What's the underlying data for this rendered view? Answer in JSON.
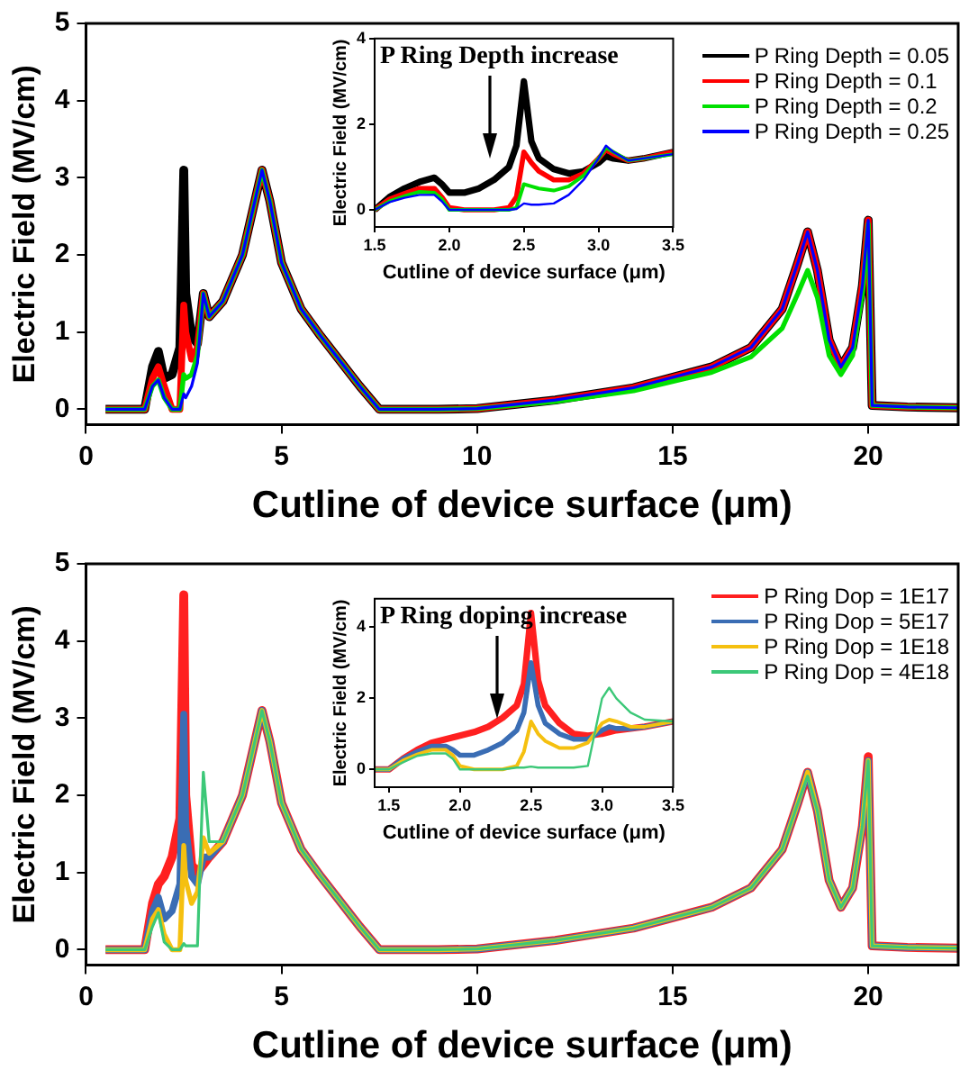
{
  "chart_data": [
    {
      "type": "line",
      "xlabel": "Cutline of device surface (μm)",
      "ylabel": "Electric Field (MV/cm)",
      "xlim": [
        0,
        22.3
      ],
      "xticks": [
        0,
        5,
        10,
        15,
        20
      ],
      "ylim": [
        -0.2,
        5
      ],
      "yticks": [
        0,
        1,
        2,
        3,
        4,
        5
      ],
      "grid": false,
      "legend": "top right",
      "marker": "none",
      "line_style": "solid",
      "x": [
        0.5,
        1.5,
        1.7,
        1.85,
        2.0,
        2.2,
        2.4,
        2.5,
        2.55,
        2.7,
        2.85,
        3.0,
        3.15,
        3.5,
        4.0,
        4.5,
        4.7,
        5.0,
        5.5,
        6.0,
        7.0,
        7.5,
        9.0,
        10,
        12,
        14,
        16,
        17,
        17.8,
        18.2,
        18.45,
        18.7,
        19.0,
        19.3,
        19.6,
        19.85,
        20.0,
        20.1,
        21,
        22.3
      ],
      "series": [
        {
          "name": "P Ring Depth = 0.05",
          "color": "#000000",
          "values": [
            0,
            0,
            0.55,
            0.75,
            0.4,
            0.45,
            0.8,
            3.1,
            1.5,
            0.95,
            0.85,
            1.5,
            1.2,
            1.4,
            2.0,
            3.1,
            2.7,
            1.9,
            1.3,
            0.95,
            0.3,
            0,
            0,
            0.01,
            0.12,
            0.28,
            0.55,
            0.8,
            1.3,
            1.9,
            2.3,
            1.8,
            0.9,
            0.55,
            0.8,
            1.6,
            2.45,
            0.05,
            0.03,
            0.02
          ]
        },
        {
          "name": "P Ring Depth = 0.1",
          "color": "#ff0000",
          "values": [
            0,
            0,
            0.4,
            0.55,
            0.3,
            0,
            0,
            1.35,
            1.0,
            0.65,
            0.8,
            1.5,
            1.2,
            1.4,
            2.0,
            3.1,
            2.7,
            1.9,
            1.3,
            0.95,
            0.3,
            0,
            0,
            0.01,
            0.12,
            0.28,
            0.55,
            0.8,
            1.3,
            1.9,
            2.3,
            1.8,
            0.9,
            0.55,
            0.8,
            1.6,
            2.45,
            0.05,
            0.03,
            0.02
          ]
        },
        {
          "name": "P Ring Depth = 0.2",
          "color": "#00e000",
          "values": [
            0,
            0,
            0.3,
            0.38,
            0.15,
            0,
            0,
            0.45,
            0.4,
            0.45,
            0.7,
            1.5,
            1.2,
            1.4,
            2.0,
            3.1,
            2.7,
            1.9,
            1.3,
            0.95,
            0.3,
            0,
            0,
            0.01,
            0.1,
            0.24,
            0.48,
            0.68,
            1.05,
            1.5,
            1.8,
            1.45,
            0.7,
            0.45,
            0.7,
            1.5,
            2.4,
            0.05,
            0.03,
            0.02
          ]
        },
        {
          "name": "P Ring Depth = 0.25",
          "color": "#0000ff",
          "values": [
            0,
            0,
            0.3,
            0.38,
            0.15,
            0,
            0,
            0.2,
            0.15,
            0.3,
            0.6,
            1.5,
            1.2,
            1.4,
            2.0,
            3.1,
            2.7,
            1.9,
            1.3,
            0.95,
            0.3,
            0,
            0,
            0.01,
            0.12,
            0.28,
            0.55,
            0.8,
            1.3,
            1.9,
            2.3,
            1.8,
            0.9,
            0.55,
            0.8,
            1.6,
            2.45,
            0.05,
            0.03,
            0.02
          ]
        }
      ]
    },
    {
      "type": "line",
      "xlabel": "Cutline of device surface (μm)",
      "ylabel": "Electric Field (MV/cm)",
      "annotations": [
        "P Ring Depth increase"
      ],
      "xlim": [
        1.5,
        3.5
      ],
      "xticks": [
        {
          "value": 1.5,
          "label": "1.5"
        },
        {
          "value": 2,
          "label": "2.0"
        },
        {
          "value": 2.5,
          "label": "2.5"
        },
        {
          "value": 3,
          "label": "3.0"
        },
        {
          "value": 3.5,
          "label": "3.5"
        }
      ],
      "ylim": [
        -0.4,
        4
      ],
      "yticks": [
        0,
        2,
        4
      ],
      "grid": false,
      "marker": "none",
      "line_style": "solid",
      "x": [
        1.5,
        1.6,
        1.7,
        1.8,
        1.9,
        1.95,
        2.0,
        2.1,
        2.2,
        2.3,
        2.4,
        2.45,
        2.5,
        2.55,
        2.6,
        2.7,
        2.8,
        2.9,
        3.0,
        3.05,
        3.1,
        3.2,
        3.3,
        3.5
      ],
      "series": [
        {
          "color": "#000000",
          "values": [
            0,
            0.3,
            0.5,
            0.65,
            0.75,
            0.6,
            0.4,
            0.4,
            0.5,
            0.7,
            1.0,
            1.5,
            3.0,
            1.6,
            1.2,
            0.95,
            0.85,
            0.9,
            1.1,
            1.25,
            1.2,
            1.15,
            1.2,
            1.35
          ]
        },
        {
          "color": "#ff0000",
          "values": [
            0,
            0.25,
            0.38,
            0.5,
            0.5,
            0.3,
            0.05,
            0,
            0,
            0,
            0.05,
            0.3,
            1.35,
            1.1,
            0.9,
            0.7,
            0.7,
            0.85,
            1.2,
            1.4,
            1.3,
            1.15,
            1.2,
            1.35
          ]
        },
        {
          "color": "#00e000",
          "values": [
            0,
            0.2,
            0.32,
            0.42,
            0.4,
            0.25,
            0,
            0,
            0,
            0,
            0,
            0.05,
            0.6,
            0.55,
            0.5,
            0.45,
            0.55,
            0.8,
            1.2,
            1.45,
            1.35,
            1.15,
            1.2,
            1.3
          ]
        },
        {
          "color": "#0000ff",
          "values": [
            0,
            0.18,
            0.28,
            0.35,
            0.35,
            0.2,
            0,
            0,
            0,
            0,
            0,
            0.02,
            0.15,
            0.12,
            0.12,
            0.15,
            0.35,
            0.7,
            1.2,
            1.5,
            1.35,
            1.15,
            1.2,
            1.3
          ]
        }
      ]
    },
    {
      "type": "line",
      "xlabel": "Cutline of device surface (μm)",
      "ylabel": "Electric Field (MV/cm)",
      "xlim": [
        0,
        22.3
      ],
      "xticks": [
        0,
        5,
        10,
        15,
        20
      ],
      "ylim": [
        -0.2,
        5
      ],
      "yticks": [
        0,
        1,
        2,
        3,
        4,
        5
      ],
      "grid": false,
      "legend": "top right",
      "marker": "none",
      "line_style": "solid",
      "x": [
        0.5,
        1.5,
        1.7,
        1.85,
        2.0,
        2.2,
        2.4,
        2.5,
        2.55,
        2.7,
        2.85,
        3.0,
        3.15,
        3.5,
        4.0,
        4.5,
        4.7,
        5.0,
        5.5,
        6.0,
        7.0,
        7.5,
        9.0,
        10,
        12,
        14,
        16,
        17,
        17.8,
        18.2,
        18.45,
        18.7,
        19.0,
        19.3,
        19.6,
        19.85,
        20.0,
        20.1,
        21,
        22.3
      ],
      "series": [
        {
          "name": "P Ring Dop = 1E17",
          "color": "#ff2020",
          "values": [
            0,
            0,
            0.6,
            0.85,
            0.95,
            1.2,
            1.7,
            4.6,
            2.0,
            1.1,
            1.0,
            1.1,
            1.2,
            1.4,
            2.0,
            3.1,
            2.7,
            1.9,
            1.3,
            0.95,
            0.3,
            0,
            0,
            0.01,
            0.12,
            0.28,
            0.55,
            0.8,
            1.3,
            1.9,
            2.3,
            1.8,
            0.9,
            0.55,
            0.8,
            1.6,
            2.5,
            0.05,
            0.03,
            0.02
          ]
        },
        {
          "name": "P Ring Dop = 5E17",
          "color": "#3a6db4",
          "values": [
            0,
            0,
            0.5,
            0.68,
            0.4,
            0.5,
            0.85,
            3.05,
            1.6,
            0.95,
            0.85,
            1.2,
            1.2,
            1.4,
            2.0,
            3.1,
            2.7,
            1.9,
            1.3,
            0.95,
            0.3,
            0,
            0,
            0.01,
            0.12,
            0.28,
            0.55,
            0.8,
            1.3,
            1.9,
            2.3,
            1.8,
            0.9,
            0.55,
            0.8,
            1.6,
            2.45,
            0.05,
            0.03,
            0.02
          ]
        },
        {
          "name": "P Ring Dop = 1E18",
          "color": "#f5c010",
          "values": [
            0,
            0,
            0.4,
            0.52,
            0.2,
            0,
            0,
            1.35,
            0.9,
            0.6,
            0.75,
            1.45,
            1.25,
            1.4,
            2.0,
            3.1,
            2.7,
            1.9,
            1.3,
            0.95,
            0.3,
            0,
            0,
            0.01,
            0.12,
            0.28,
            0.55,
            0.8,
            1.3,
            1.9,
            2.3,
            1.8,
            0.9,
            0.55,
            0.8,
            1.6,
            2.45,
            0.05,
            0.03,
            0.02
          ]
        },
        {
          "name": "P Ring Dop = 4E18",
          "color": "#3cc878",
          "values": [
            0,
            0,
            0.3,
            0.48,
            0.1,
            0,
            0,
            0.08,
            0.05,
            0.05,
            0.05,
            2.3,
            1.4,
            1.4,
            2.0,
            3.1,
            2.7,
            1.9,
            1.3,
            0.95,
            0.3,
            0,
            0,
            0.01,
            0.12,
            0.28,
            0.55,
            0.8,
            1.3,
            1.9,
            2.25,
            1.8,
            0.9,
            0.55,
            0.8,
            1.6,
            2.45,
            0.05,
            0.03,
            0.02
          ]
        }
      ]
    },
    {
      "type": "line",
      "xlabel": "Cutline of device surface (μm)",
      "ylabel": "Electric Field (MV/cm)",
      "annotations": [
        "P Ring doping increase"
      ],
      "xlim": [
        1.4,
        3.5
      ],
      "xticks": [
        {
          "value": 1.5,
          "label": "1.5"
        },
        {
          "value": 2,
          "label": "2.0"
        },
        {
          "value": 2.5,
          "label": "2.5"
        },
        {
          "value": 3,
          "label": "3.0"
        },
        {
          "value": 3.5,
          "label": "3.5"
        }
      ],
      "ylim": [
        -0.5,
        4.8
      ],
      "yticks": [
        0,
        2,
        4
      ],
      "grid": false,
      "marker": "none",
      "line_style": "solid",
      "x": [
        1.4,
        1.5,
        1.6,
        1.7,
        1.8,
        1.9,
        1.95,
        2.0,
        2.1,
        2.2,
        2.3,
        2.4,
        2.45,
        2.5,
        2.55,
        2.6,
        2.7,
        2.8,
        2.9,
        3.0,
        3.05,
        3.1,
        3.2,
        3.3,
        3.5
      ],
      "series": [
        {
          "color": "#ff2020",
          "values": [
            0,
            0,
            0.3,
            0.55,
            0.75,
            0.85,
            0.9,
            0.95,
            1.05,
            1.2,
            1.45,
            1.8,
            2.4,
            4.4,
            2.5,
            1.8,
            1.3,
            1.0,
            0.95,
            1.0,
            1.05,
            1.1,
            1.15,
            1.2,
            1.35
          ]
        },
        {
          "color": "#3a6db4",
          "values": [
            0,
            0,
            0.3,
            0.5,
            0.65,
            0.65,
            0.55,
            0.4,
            0.4,
            0.55,
            0.75,
            1.1,
            1.6,
            3.0,
            1.8,
            1.3,
            1.0,
            0.85,
            0.85,
            1.1,
            1.2,
            1.15,
            1.15,
            1.2,
            1.35
          ]
        },
        {
          "color": "#f5c010",
          "values": [
            0,
            0,
            0.25,
            0.42,
            0.55,
            0.55,
            0.4,
            0.1,
            0,
            0,
            0,
            0.1,
            0.5,
            1.35,
            1.0,
            0.8,
            0.6,
            0.6,
            0.75,
            1.3,
            1.4,
            1.35,
            1.2,
            1.2,
            1.35
          ]
        },
        {
          "color": "#3cc878",
          "values": [
            0,
            0,
            0.2,
            0.38,
            0.45,
            0.45,
            0.3,
            0,
            0,
            0,
            0,
            0.05,
            0.05,
            0.08,
            0.05,
            0.05,
            0.05,
            0.05,
            0.1,
            2.0,
            2.3,
            2.0,
            1.6,
            1.4,
            1.35
          ]
        }
      ]
    }
  ]
}
